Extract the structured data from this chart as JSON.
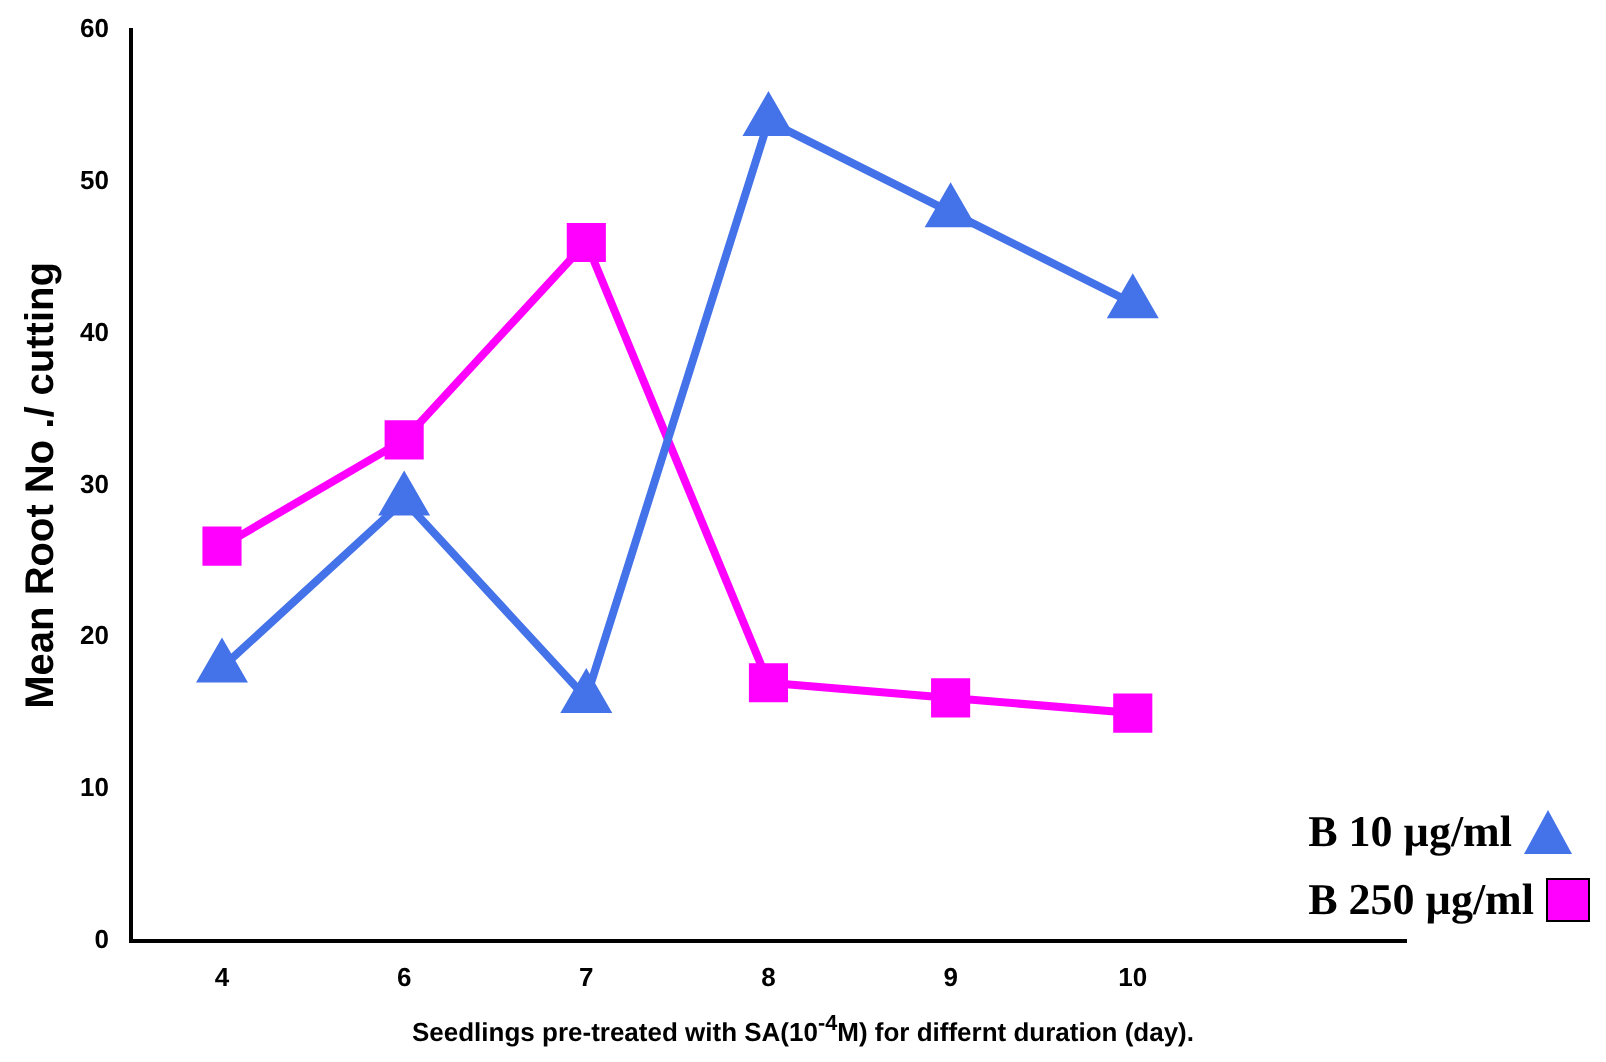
{
  "chart_data": {
    "type": "line",
    "xlabel": "Seedlings pre-treated with SA(10$^{-4}$M) for differnt duration (day).",
    "ylabel": "Mean Root No ./ cutting",
    "categories": [
      "4",
      "6",
      "7",
      "8",
      "9",
      "10",
      null
    ],
    "series": [
      {
        "name": "B  10 µg/ml",
        "color": "#4472e8",
        "marker": "triangle",
        "values": [
          18,
          29,
          16,
          54,
          48,
          42,
          null
        ]
      },
      {
        "name": "B  250 µg/ml",
        "color": "#ff00ff",
        "marker": "square",
        "values": [
          26,
          33,
          46,
          17,
          16,
          15,
          null
        ]
      }
    ],
    "ylim": [
      0,
      60
    ],
    "yticks": [
      0,
      10,
      20,
      30,
      40,
      50,
      60
    ],
    "grid": false,
    "legend": "bottom right"
  }
}
